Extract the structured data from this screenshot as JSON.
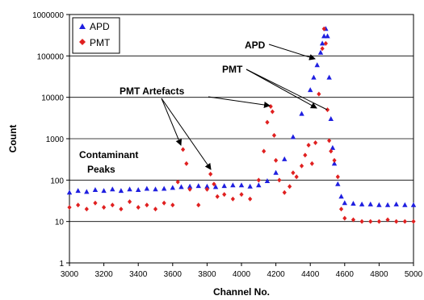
{
  "chart_data": {
    "type": "scatter",
    "title": "",
    "xlabel": "Channel No.",
    "ylabel": "Count",
    "xlim": [
      3000,
      5000
    ],
    "ylim": [
      1,
      1000000
    ],
    "y_scale": "log",
    "grid": "horizontal",
    "legend_position": "top-left",
    "x_ticks": [
      "3000",
      "3200",
      "3400",
      "3600",
      "3800",
      "4000",
      "4200",
      "4400",
      "4600",
      "4800",
      "5000"
    ],
    "y_ticks": [
      "1",
      "10",
      "100",
      "1000",
      "10000",
      "100000",
      "1000000"
    ],
    "series": [
      {
        "name": "APD",
        "color": "#1f1fe0",
        "marker": "triangle",
        "x": [
          3000,
          3050,
          3100,
          3150,
          3200,
          3250,
          3300,
          3350,
          3400,
          3450,
          3500,
          3550,
          3600,
          3650,
          3700,
          3750,
          3800,
          3850,
          3900,
          3950,
          4000,
          4050,
          4100,
          4150,
          4200,
          4250,
          4300,
          4350,
          4400,
          4420,
          4440,
          4460,
          4470,
          4480,
          4490,
          4500,
          4510,
          4520,
          4530,
          4540,
          4560,
          4580,
          4600,
          4650,
          4700,
          4750,
          4800,
          4850,
          4900,
          4950,
          5000
        ],
        "y": [
          50,
          55,
          52,
          58,
          55,
          60,
          55,
          60,
          58,
          62,
          60,
          62,
          65,
          68,
          70,
          72,
          70,
          68,
          72,
          75,
          75,
          70,
          75,
          95,
          150,
          320,
          1100,
          4000,
          15000,
          30000,
          60000,
          120000,
          200000,
          300000,
          450000,
          300000,
          30000,
          3000,
          600,
          250,
          80,
          40,
          28,
          27,
          26,
          26,
          25,
          25,
          26,
          25,
          25
        ]
      },
      {
        "name": "PMT",
        "color": "#e02020",
        "marker": "diamond",
        "x": [
          3000,
          3050,
          3100,
          3150,
          3200,
          3250,
          3300,
          3350,
          3400,
          3450,
          3500,
          3550,
          3600,
          3630,
          3660,
          3680,
          3700,
          3750,
          3800,
          3820,
          3840,
          3860,
          3900,
          3950,
          4000,
          4050,
          4100,
          4130,
          4150,
          4170,
          4180,
          4190,
          4200,
          4220,
          4250,
          4280,
          4300,
          4320,
          4350,
          4370,
          4390,
          4410,
          4430,
          4450,
          4470,
          4480,
          4490,
          4500,
          4510,
          4520,
          4540,
          4560,
          4580,
          4600,
          4650,
          4700,
          4750,
          4800,
          4850,
          4900,
          4950,
          5000
        ],
        "y": [
          22,
          25,
          20,
          28,
          22,
          25,
          20,
          30,
          22,
          25,
          20,
          28,
          25,
          90,
          550,
          250,
          60,
          25,
          60,
          140,
          80,
          40,
          45,
          35,
          45,
          35,
          100,
          500,
          2500,
          6000,
          4500,
          1200,
          300,
          100,
          50,
          70,
          150,
          120,
          220,
          400,
          700,
          250,
          800,
          12000,
          150000,
          450000,
          200000,
          5000,
          900,
          500,
          300,
          120,
          20,
          12,
          11,
          10,
          10,
          10,
          11,
          10,
          10,
          10
        ]
      }
    ],
    "annotations": [
      "APD",
      "PMT",
      "PMT Artefacts",
      "Contaminant",
      "Peaks"
    ]
  }
}
